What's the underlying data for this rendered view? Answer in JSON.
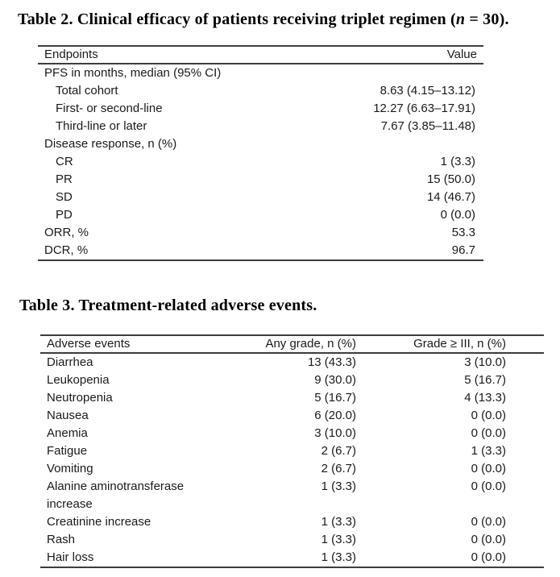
{
  "page": {
    "background": "#ffffff",
    "text_color": "#1a1a1a",
    "rule_color": "#3d3d3d"
  },
  "table2": {
    "title": {
      "prefix": "Table 2. Clinical efficacy of patients receiving triplet regimen (",
      "emphasis": "n",
      "suffix": " = 30)."
    },
    "columns": {
      "endpoints": "Endpoints",
      "value": "Value"
    },
    "rows": [
      {
        "label": "PFS in months, median (95% CI)",
        "value": ""
      },
      {
        "label": "Total cohort",
        "value": "8.63 (4.15–13.12)"
      },
      {
        "label": "First- or second-line",
        "value": "12.27 (6.63–17.91)"
      },
      {
        "label": "Third-line or later",
        "value": "7.67 (3.85–11.48)"
      },
      {
        "label": "Disease response, n (%)",
        "value": ""
      },
      {
        "label": "CR",
        "value": "1 (3.3)"
      },
      {
        "label": "PR",
        "value": "15 (50.0)"
      },
      {
        "label": "SD",
        "value": "14 (46.7)"
      },
      {
        "label": "PD",
        "value": "0 (0.0)"
      },
      {
        "label": "ORR, %",
        "value": "53.3"
      },
      {
        "label": "DCR, %",
        "value": "96.7"
      }
    ]
  },
  "table3": {
    "title": "Table 3. Treatment-related adverse events.",
    "columns": {
      "adverse_events": "Adverse events",
      "any_grade": "Any grade, n (%)",
      "grade_3plus": "Grade ≥ III, n (%)"
    },
    "rows": [
      {
        "label": "Diarrhea",
        "any_grade": "13 (43.3)",
        "grade_3plus": "3 (10.0)"
      },
      {
        "label": "Leukopenia",
        "any_grade": "9 (30.0)",
        "grade_3plus": "5 (16.7)"
      },
      {
        "label": "Neutropenia",
        "any_grade": "5 (16.7)",
        "grade_3plus": "4 (13.3)"
      },
      {
        "label": "Nausea",
        "any_grade": "6 (20.0)",
        "grade_3plus": "0 (0.0)"
      },
      {
        "label": "Anemia",
        "any_grade": "3 (10.0)",
        "grade_3plus": "0 (0.0)"
      },
      {
        "label": "Fatigue",
        "any_grade": "2 (6.7)",
        "grade_3plus": "1 (3.3)"
      },
      {
        "label": "Vomiting",
        "any_grade": "2 (6.7)",
        "grade_3plus": "0 (0.0)"
      },
      {
        "label": "Alanine aminotransferase",
        "any_grade": "1 (3.3)",
        "grade_3plus": "0 (0.0)"
      },
      {
        "label": "increase",
        "any_grade": "",
        "grade_3plus": ""
      },
      {
        "label": "Creatinine increase",
        "any_grade": "1 (3.3)",
        "grade_3plus": "0 (0.0)"
      },
      {
        "label": "Rash",
        "any_grade": "1 (3.3)",
        "grade_3plus": "0 (0.0)"
      },
      {
        "label": "Hair loss",
        "any_grade": "1 (3.3)",
        "grade_3plus": "0 (0.0)"
      }
    ]
  }
}
